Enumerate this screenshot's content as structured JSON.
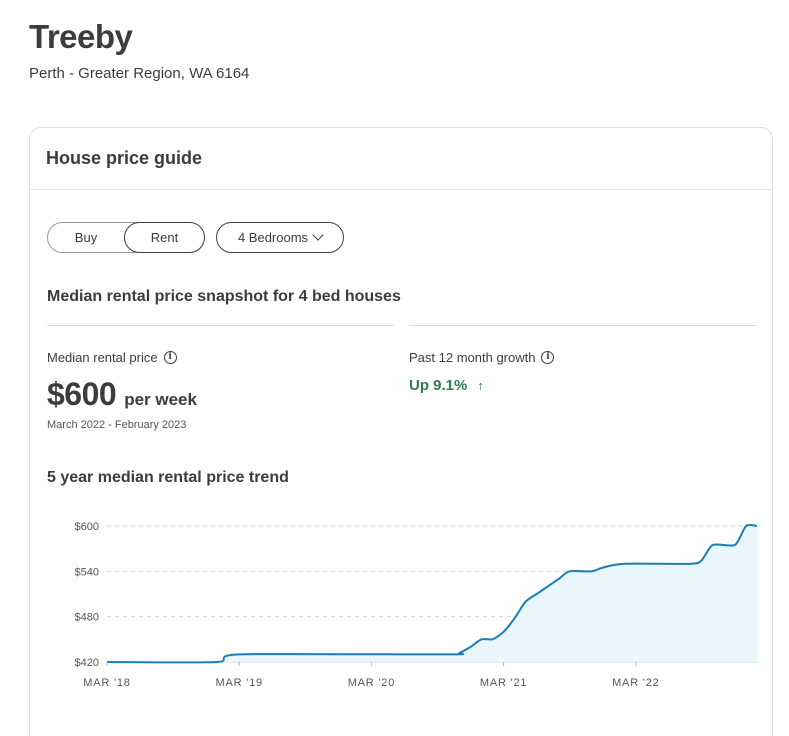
{
  "suburb": {
    "name": "Treeby",
    "region": "Perth - Greater Region, WA 6164"
  },
  "card": {
    "title": "House price guide",
    "toggle": {
      "buy": "Buy",
      "rent": "Rent",
      "selected": "Rent"
    },
    "bedrooms": "4 Bedrooms",
    "snapshot_title": "Median rental price snapshot for 4 bed houses",
    "median": {
      "label": "Median rental price",
      "value": "$600",
      "unit": "per week",
      "period": "March 2022 - February 2023"
    },
    "growth": {
      "label": "Past 12 month growth",
      "value": "Up 9.1%",
      "arrow": "↑"
    },
    "trend_title": "5 year median rental price trend"
  },
  "icons": {
    "info": "info-icon",
    "chevron": "chevron-down-icon",
    "arrow": "arrow-up-icon"
  },
  "colors": {
    "line": "#1a7db6",
    "fill": "#e9f6fc",
    "growth": "#2e7d4f",
    "text": "#3c3c3c"
  },
  "chart_data": {
    "type": "area",
    "yticks": [
      "$600",
      "$540",
      "$480",
      "$420"
    ],
    "ytick_values": [
      600,
      540,
      480,
      420
    ],
    "ylim": [
      420,
      600
    ],
    "xticks": [
      "MAR '18",
      "MAR '19",
      "MAR '20",
      "MAR '21",
      "MAR '22"
    ],
    "xtick_values": [
      "2018-03",
      "2019-03",
      "2020-03",
      "2021-03",
      "2022-03"
    ],
    "xlim": [
      "2018-03",
      "2023-02"
    ],
    "grid": true,
    "series": [
      {
        "values": [
          [
            "2018-03",
            420
          ],
          [
            "2019-01",
            420
          ],
          [
            "2019-03",
            430
          ],
          [
            "2020-10",
            430
          ],
          [
            "2020-11",
            432
          ],
          [
            "2020-12",
            440
          ],
          [
            "2021-01",
            450
          ],
          [
            "2021-02",
            450
          ],
          [
            "2021-03",
            460
          ],
          [
            "2021-04",
            478
          ],
          [
            "2021-05",
            500
          ],
          [
            "2021-06",
            510
          ],
          [
            "2021-07",
            520
          ],
          [
            "2021-08",
            530
          ],
          [
            "2021-09",
            540
          ],
          [
            "2021-11",
            540
          ],
          [
            "2021-12",
            545
          ],
          [
            "2022-02",
            550
          ],
          [
            "2022-08",
            550
          ],
          [
            "2022-09",
            555
          ],
          [
            "2022-10",
            575
          ],
          [
            "2022-12",
            575
          ],
          [
            "2023-01",
            600
          ],
          [
            "2023-02",
            600
          ]
        ]
      }
    ]
  }
}
